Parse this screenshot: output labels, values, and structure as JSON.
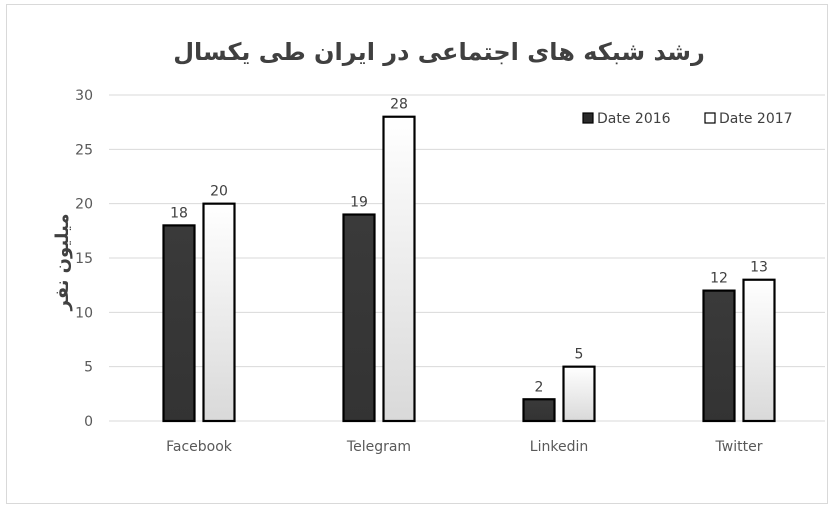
{
  "chart_data": {
    "type": "bar",
    "title": "رشد شبکه های اجتماعی در ایران طی یکسال",
    "ylabel": "میلیون نفر",
    "xlabel": "",
    "categories": [
      "Facebook",
      "Telegram",
      "Linkedin",
      "Twitter"
    ],
    "series": [
      {
        "name": "Date 2016",
        "values": [
          18,
          19,
          2,
          12
        ],
        "color": "#3a3a3a"
      },
      {
        "name": "Date 2017",
        "values": [
          20,
          28,
          5,
          13
        ],
        "color": "#f2f2f2"
      }
    ],
    "ylim": [
      0,
      30
    ],
    "yticks": [
      0,
      5,
      10,
      15,
      20,
      25,
      30
    ],
    "grid": true,
    "legend": "top-right",
    "data_labels": true
  }
}
